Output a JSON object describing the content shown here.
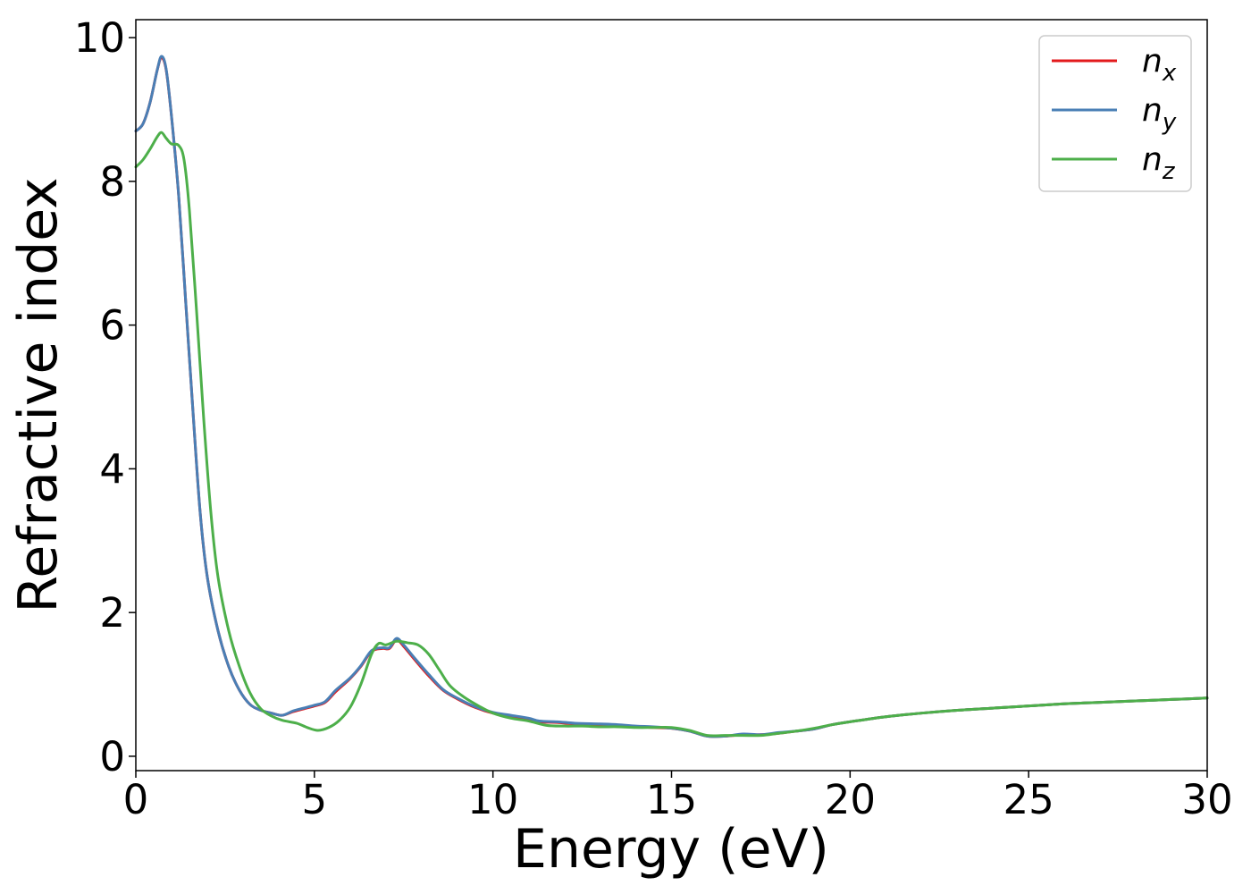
{
  "chart_data": {
    "type": "line",
    "xlabel": "Energy (eV)",
    "ylabel": "Refractive index",
    "xlim": [
      0,
      30
    ],
    "ylim": [
      -0.2,
      10.25
    ],
    "xticks": [
      "0",
      "5",
      "10",
      "15",
      "20",
      "25",
      "30"
    ],
    "yticks": [
      "0",
      "2",
      "4",
      "6",
      "8",
      "10"
    ],
    "grid": false,
    "legend_position": "top-right",
    "series": [
      {
        "name": "n_x",
        "legend_main": "n",
        "legend_sub": "x",
        "color": "#e31a1c",
        "points": [
          [
            0,
            8.7
          ],
          [
            0.2,
            8.8
          ],
          [
            0.4,
            9.1
          ],
          [
            0.6,
            9.55
          ],
          [
            0.72,
            9.72
          ],
          [
            0.85,
            9.55
          ],
          [
            1.0,
            8.9
          ],
          [
            1.2,
            7.8
          ],
          [
            1.4,
            6.3
          ],
          [
            1.6,
            4.8
          ],
          [
            1.8,
            3.4
          ],
          [
            2.0,
            2.5
          ],
          [
            2.3,
            1.75
          ],
          [
            2.6,
            1.25
          ],
          [
            2.9,
            0.92
          ],
          [
            3.2,
            0.72
          ],
          [
            3.5,
            0.64
          ],
          [
            3.8,
            0.6
          ],
          [
            4.1,
            0.57
          ],
          [
            4.4,
            0.62
          ],
          [
            4.7,
            0.66
          ],
          [
            5.0,
            0.7
          ],
          [
            5.3,
            0.75
          ],
          [
            5.6,
            0.9
          ],
          [
            6.0,
            1.08
          ],
          [
            6.3,
            1.25
          ],
          [
            6.6,
            1.46
          ],
          [
            6.9,
            1.5
          ],
          [
            7.1,
            1.5
          ],
          [
            7.3,
            1.62
          ],
          [
            7.5,
            1.53
          ],
          [
            7.8,
            1.35
          ],
          [
            8.2,
            1.12
          ],
          [
            8.6,
            0.92
          ],
          [
            9.0,
            0.8
          ],
          [
            9.5,
            0.68
          ],
          [
            10.0,
            0.6
          ],
          [
            10.5,
            0.56
          ],
          [
            11.0,
            0.52
          ],
          [
            11.3,
            0.48
          ],
          [
            11.8,
            0.47
          ],
          [
            12.3,
            0.45
          ],
          [
            13.0,
            0.44
          ],
          [
            13.5,
            0.43
          ],
          [
            14.0,
            0.41
          ],
          [
            14.5,
            0.4
          ],
          [
            15.0,
            0.39
          ],
          [
            15.5,
            0.35
          ],
          [
            16.0,
            0.28
          ],
          [
            16.5,
            0.28
          ],
          [
            17.0,
            0.3
          ],
          [
            17.5,
            0.3
          ],
          [
            18.0,
            0.32
          ],
          [
            18.5,
            0.35
          ],
          [
            19.0,
            0.38
          ],
          [
            19.5,
            0.44
          ],
          [
            20.0,
            0.48
          ],
          [
            21.0,
            0.55
          ],
          [
            22.0,
            0.6
          ],
          [
            23.0,
            0.64
          ],
          [
            24.0,
            0.67
          ],
          [
            25.0,
            0.7
          ],
          [
            26.0,
            0.73
          ],
          [
            27.0,
            0.75
          ],
          [
            28.0,
            0.77
          ],
          [
            29.0,
            0.79
          ],
          [
            30.0,
            0.81
          ]
        ]
      },
      {
        "name": "n_y",
        "legend_main": "n",
        "legend_sub": "y",
        "color": "#4a7fb5",
        "points": [
          [
            0,
            8.7
          ],
          [
            0.2,
            8.8
          ],
          [
            0.4,
            9.1
          ],
          [
            0.6,
            9.55
          ],
          [
            0.72,
            9.74
          ],
          [
            0.85,
            9.56
          ],
          [
            1.0,
            8.9
          ],
          [
            1.2,
            7.8
          ],
          [
            1.4,
            6.3
          ],
          [
            1.6,
            4.8
          ],
          [
            1.8,
            3.4
          ],
          [
            2.0,
            2.5
          ],
          [
            2.3,
            1.75
          ],
          [
            2.6,
            1.25
          ],
          [
            2.9,
            0.92
          ],
          [
            3.2,
            0.72
          ],
          [
            3.5,
            0.64
          ],
          [
            3.8,
            0.6
          ],
          [
            4.1,
            0.57
          ],
          [
            4.4,
            0.63
          ],
          [
            4.7,
            0.67
          ],
          [
            5.0,
            0.71
          ],
          [
            5.3,
            0.76
          ],
          [
            5.6,
            0.92
          ],
          [
            6.0,
            1.09
          ],
          [
            6.3,
            1.26
          ],
          [
            6.6,
            1.47
          ],
          [
            6.9,
            1.51
          ],
          [
            7.1,
            1.51
          ],
          [
            7.3,
            1.64
          ],
          [
            7.5,
            1.55
          ],
          [
            7.8,
            1.37
          ],
          [
            8.2,
            1.14
          ],
          [
            8.6,
            0.93
          ],
          [
            9.0,
            0.81
          ],
          [
            9.5,
            0.69
          ],
          [
            10.0,
            0.61
          ],
          [
            10.5,
            0.57
          ],
          [
            11.0,
            0.53
          ],
          [
            11.3,
            0.49
          ],
          [
            11.8,
            0.48
          ],
          [
            12.3,
            0.46
          ],
          [
            13.0,
            0.45
          ],
          [
            13.5,
            0.44
          ],
          [
            14.0,
            0.42
          ],
          [
            14.5,
            0.41
          ],
          [
            15.0,
            0.39
          ],
          [
            15.5,
            0.35
          ],
          [
            16.0,
            0.28
          ],
          [
            16.5,
            0.28
          ],
          [
            17.0,
            0.31
          ],
          [
            17.5,
            0.3
          ],
          [
            18.0,
            0.33
          ],
          [
            18.5,
            0.35
          ],
          [
            19.0,
            0.38
          ],
          [
            19.5,
            0.44
          ],
          [
            20.0,
            0.48
          ],
          [
            21.0,
            0.55
          ],
          [
            22.0,
            0.6
          ],
          [
            23.0,
            0.64
          ],
          [
            24.0,
            0.67
          ],
          [
            25.0,
            0.7
          ],
          [
            26.0,
            0.73
          ],
          [
            27.0,
            0.75
          ],
          [
            28.0,
            0.77
          ],
          [
            29.0,
            0.79
          ],
          [
            30.0,
            0.81
          ]
        ]
      },
      {
        "name": "n_z",
        "legend_main": "n",
        "legend_sub": "z",
        "color": "#4daf4a",
        "points": [
          [
            0,
            8.2
          ],
          [
            0.2,
            8.3
          ],
          [
            0.4,
            8.45
          ],
          [
            0.6,
            8.62
          ],
          [
            0.72,
            8.68
          ],
          [
            0.85,
            8.6
          ],
          [
            1.0,
            8.52
          ],
          [
            1.2,
            8.5
          ],
          [
            1.35,
            8.3
          ],
          [
            1.5,
            7.6
          ],
          [
            1.7,
            6.2
          ],
          [
            1.9,
            4.7
          ],
          [
            2.1,
            3.4
          ],
          [
            2.3,
            2.5
          ],
          [
            2.6,
            1.75
          ],
          [
            2.9,
            1.25
          ],
          [
            3.2,
            0.88
          ],
          [
            3.5,
            0.66
          ],
          [
            3.8,
            0.56
          ],
          [
            4.1,
            0.5
          ],
          [
            4.5,
            0.46
          ],
          [
            4.8,
            0.4
          ],
          [
            5.1,
            0.36
          ],
          [
            5.4,
            0.4
          ],
          [
            5.7,
            0.5
          ],
          [
            6.0,
            0.68
          ],
          [
            6.3,
            1.0
          ],
          [
            6.6,
            1.42
          ],
          [
            6.8,
            1.57
          ],
          [
            7.0,
            1.55
          ],
          [
            7.3,
            1.6
          ],
          [
            7.6,
            1.58
          ],
          [
            7.9,
            1.55
          ],
          [
            8.2,
            1.42
          ],
          [
            8.5,
            1.2
          ],
          [
            8.8,
            0.98
          ],
          [
            9.2,
            0.82
          ],
          [
            9.6,
            0.7
          ],
          [
            10.0,
            0.6
          ],
          [
            10.5,
            0.53
          ],
          [
            11.0,
            0.49
          ],
          [
            11.5,
            0.43
          ],
          [
            12.0,
            0.42
          ],
          [
            12.5,
            0.42
          ],
          [
            13.0,
            0.41
          ],
          [
            13.5,
            0.41
          ],
          [
            14.0,
            0.4
          ],
          [
            14.5,
            0.4
          ],
          [
            15.0,
            0.4
          ],
          [
            15.5,
            0.36
          ],
          [
            16.0,
            0.29
          ],
          [
            16.5,
            0.29
          ],
          [
            17.0,
            0.29
          ],
          [
            17.5,
            0.29
          ],
          [
            18.0,
            0.32
          ],
          [
            18.5,
            0.35
          ],
          [
            19.0,
            0.39
          ],
          [
            19.5,
            0.44
          ],
          [
            20.0,
            0.48
          ],
          [
            21.0,
            0.55
          ],
          [
            22.0,
            0.6
          ],
          [
            23.0,
            0.64
          ],
          [
            24.0,
            0.67
          ],
          [
            25.0,
            0.7
          ],
          [
            26.0,
            0.73
          ],
          [
            27.0,
            0.75
          ],
          [
            28.0,
            0.77
          ],
          [
            29.0,
            0.79
          ],
          [
            30.0,
            0.81
          ]
        ]
      }
    ]
  }
}
